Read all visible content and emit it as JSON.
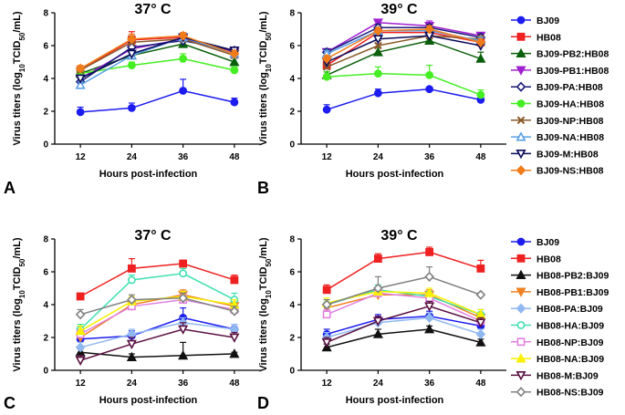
{
  "chart_data": [
    {
      "panel": "A",
      "type": "line",
      "title": "37° C",
      "xlabel": "Hours post-infection",
      "ylabel": "Virus titers (log10TCID50/mL)",
      "x": [
        12,
        24,
        36,
        48
      ],
      "xticks": [
        "12",
        "24",
        "36",
        "48"
      ],
      "ylim": [
        0,
        8
      ],
      "yticks": [
        "0",
        "2",
        "4",
        "6",
        "8"
      ],
      "series": [
        {
          "name": "BJ09",
          "color": "#1c1cf0",
          "marker": "circle",
          "values": [
            1.95,
            2.2,
            3.25,
            2.55
          ],
          "errors": [
            0.3,
            0.3,
            0.7,
            0.25
          ]
        },
        {
          "name": "HB08",
          "color": "#ef2020",
          "marker": "square",
          "values": [
            4.5,
            6.35,
            6.5,
            5.5
          ],
          "errors": [
            0.2,
            0.5,
            0.2,
            0.2
          ]
        },
        {
          "name": "BJ09-PB2:HB08",
          "color": "#0a5f0a",
          "marker": "triangle",
          "values": [
            4.3,
            5.4,
            6.1,
            5.0
          ],
          "errors": [
            0.2,
            0.3,
            0.3,
            0.3
          ]
        },
        {
          "name": "BJ09-PB1:HB08",
          "color": "#a020d0",
          "marker": "triangle-down",
          "values": [
            4.0,
            5.8,
            6.4,
            5.6
          ],
          "errors": [
            0.2,
            0.2,
            0.2,
            0.2
          ]
        },
        {
          "name": "BJ09-PA:HB08",
          "color": "#1a1a7a",
          "marker": "diamond-open",
          "values": [
            3.8,
            5.9,
            6.3,
            5.7
          ],
          "errors": [
            0.2,
            0.3,
            0.2,
            0.2
          ]
        },
        {
          "name": "BJ09-HA:HB08",
          "color": "#44ee22",
          "marker": "circle",
          "values": [
            4.3,
            4.8,
            5.2,
            4.5
          ],
          "errors": [
            0.2,
            0.2,
            0.3,
            0.2
          ]
        },
        {
          "name": "BJ09-NP:HB08",
          "color": "#8a5a2a",
          "marker": "x",
          "values": [
            4.5,
            6.2,
            6.4,
            5.4
          ],
          "errors": [
            0.2,
            0.4,
            0.3,
            0.2
          ]
        },
        {
          "name": "BJ09-NA:HB08",
          "color": "#5aa0e8",
          "marker": "triangle-open",
          "values": [
            3.6,
            5.4,
            6.5,
            5.5
          ],
          "errors": [
            0.2,
            0.3,
            0.2,
            0.2
          ]
        },
        {
          "name": "BJ09-M:HB08",
          "color": "#0a0a5a",
          "marker": "triangle-down-open",
          "values": [
            4.0,
            5.5,
            6.5,
            5.7
          ],
          "errors": [
            0.2,
            0.3,
            0.2,
            0.2
          ]
        },
        {
          "name": "BJ09-NS:HB08",
          "color": "#f07c1a",
          "marker": "diamond",
          "values": [
            4.6,
            6.4,
            6.6,
            5.5
          ],
          "errors": [
            0.2,
            0.3,
            0.2,
            0.2
          ]
        }
      ]
    },
    {
      "panel": "B",
      "type": "line",
      "title": "39° C",
      "xlabel": "Hours post-infection",
      "ylabel": "Virus titers (log10TCID50/mL)",
      "x": [
        12,
        24,
        36,
        48
      ],
      "xticks": [
        "12",
        "24",
        "36",
        "48"
      ],
      "ylim": [
        0,
        8
      ],
      "yticks": [
        "0",
        "2",
        "4",
        "6",
        "8"
      ],
      "series": [
        {
          "name": "BJ09",
          "color": "#1c1cf0",
          "marker": "circle",
          "values": [
            2.1,
            3.1,
            3.35,
            2.7
          ],
          "errors": [
            0.3,
            0.25,
            0.1,
            0.2
          ]
        },
        {
          "name": "HB08",
          "color": "#ef2020",
          "marker": "square",
          "values": [
            4.8,
            6.8,
            6.8,
            6.2
          ],
          "errors": [
            0.3,
            0.3,
            0.3,
            0.3
          ]
        },
        {
          "name": "BJ09-PB2:HB08",
          "color": "#0a5f0a",
          "marker": "triangle",
          "values": [
            4.2,
            5.6,
            6.3,
            5.2
          ],
          "errors": [
            0.2,
            0.3,
            0.3,
            0.4
          ]
        },
        {
          "name": "BJ09-PB1:HB08",
          "color": "#a020d0",
          "marker": "triangle-down",
          "values": [
            5.6,
            7.4,
            7.2,
            6.6
          ],
          "errors": [
            0.2,
            0.2,
            0.3,
            0.2
          ]
        },
        {
          "name": "BJ09-PA:HB08",
          "color": "#1a1a7a",
          "marker": "diamond-open",
          "values": [
            5.6,
            7.1,
            7.1,
            6.5
          ],
          "errors": [
            0.2,
            0.2,
            0.2,
            0.2
          ]
        },
        {
          "name": "BJ09-HA:HB08",
          "color": "#44ee22",
          "marker": "circle",
          "values": [
            4.1,
            4.3,
            4.2,
            3.0
          ],
          "errors": [
            0.3,
            0.4,
            0.6,
            0.3
          ]
        },
        {
          "name": "BJ09-NP:HB08",
          "color": "#8a5a2a",
          "marker": "x",
          "values": [
            4.7,
            6.0,
            6.6,
            6.4
          ],
          "errors": [
            0.2,
            0.3,
            0.3,
            0.2
          ]
        },
        {
          "name": "BJ09-NA:HB08",
          "color": "#5aa0e8",
          "marker": "triangle-open",
          "values": [
            5.5,
            6.9,
            6.9,
            6.3
          ],
          "errors": [
            0.2,
            0.2,
            0.2,
            0.2
          ]
        },
        {
          "name": "BJ09-M:HB08",
          "color": "#0a0a5a",
          "marker": "triangle-down-open",
          "values": [
            5.0,
            6.4,
            6.6,
            6.0
          ],
          "errors": [
            0.2,
            0.2,
            0.3,
            0.2
          ]
        },
        {
          "name": "BJ09-NS:HB08",
          "color": "#f07c1a",
          "marker": "diamond",
          "values": [
            5.2,
            6.9,
            7.0,
            6.2
          ],
          "errors": [
            0.2,
            0.2,
            0.2,
            0.2
          ]
        }
      ]
    },
    {
      "panel": "C",
      "type": "line",
      "title": "37° C",
      "xlabel": "Hours post-infection",
      "ylabel": "Virus titers (log10TCID50/mL)",
      "x": [
        12,
        24,
        36,
        48
      ],
      "xticks": [
        "12",
        "24",
        "36",
        "48"
      ],
      "ylim": [
        0,
        8
      ],
      "yticks": [
        "0",
        "2",
        "4",
        "6",
        "8"
      ],
      "series": [
        {
          "name": "BJ09",
          "color": "#1c1cf0",
          "marker": "circle",
          "values": [
            1.9,
            2.1,
            3.2,
            2.5
          ],
          "errors": [
            0.3,
            0.3,
            0.6,
            0.3
          ]
        },
        {
          "name": "HB08",
          "color": "#ef2020",
          "marker": "square",
          "values": [
            4.5,
            6.2,
            6.5,
            5.5
          ],
          "errors": [
            0.1,
            0.6,
            0.2,
            0.3
          ]
        },
        {
          "name": "HB08-PB2:BJ09",
          "color": "#111111",
          "marker": "triangle",
          "values": [
            1.1,
            0.8,
            0.9,
            1.0
          ],
          "errors": [
            0.2,
            0.2,
            0.8,
            0.1
          ]
        },
        {
          "name": "HB08-PB1:BJ09",
          "color": "#f08020",
          "marker": "triangle-down",
          "values": [
            2.0,
            4.0,
            4.6,
            3.9
          ],
          "errors": [
            0.3,
            0.3,
            0.3,
            0.3
          ]
        },
        {
          "name": "HB08-PA:BJ09",
          "color": "#90b8f0",
          "marker": "diamond",
          "values": [
            1.4,
            2.2,
            2.9,
            2.5
          ],
          "errors": [
            0.3,
            0.3,
            0.3,
            0.3
          ]
        },
        {
          "name": "HB08-HA:BJ09",
          "color": "#40e0b0",
          "marker": "circle-open",
          "values": [
            2.5,
            5.5,
            5.9,
            4.3
          ],
          "errors": [
            0.3,
            0.3,
            0.3,
            0.4
          ]
        },
        {
          "name": "HB08-NP:BJ09",
          "color": "#e080e0",
          "marker": "square-open",
          "values": [
            2.2,
            3.9,
            4.3,
            3.7
          ],
          "errors": [
            0.3,
            0.3,
            0.3,
            0.3
          ]
        },
        {
          "name": "HB08-NA:BJ09",
          "color": "#f8f000",
          "marker": "triangle",
          "values": [
            2.4,
            4.2,
            4.5,
            4.0
          ],
          "errors": [
            0.3,
            0.3,
            0.3,
            0.3
          ]
        },
        {
          "name": "HB08-M:BJ09",
          "color": "#5a1040",
          "marker": "triangle-down-open",
          "values": [
            0.6,
            1.6,
            2.5,
            2.0
          ],
          "errors": [
            0.3,
            0.4,
            0.4,
            0.3
          ]
        },
        {
          "name": "HB08-NS:BJ09",
          "color": "#808080",
          "marker": "diamond-open",
          "values": [
            3.4,
            4.3,
            4.4,
            3.6
          ],
          "errors": [
            0.3,
            0.3,
            0.3,
            0.3
          ]
        }
      ]
    },
    {
      "panel": "D",
      "type": "line",
      "title": "39° C",
      "xlabel": "Hours post-infection",
      "ylabel": "Virus titers (log10TCID50/mL)",
      "x": [
        12,
        24,
        36,
        48
      ],
      "xticks": [
        "12",
        "24",
        "36",
        "48"
      ],
      "ylim": [
        0,
        8
      ],
      "yticks": [
        "0",
        "2",
        "4",
        "6",
        "8"
      ],
      "series": [
        {
          "name": "BJ09",
          "color": "#1c1cf0",
          "marker": "circle",
          "values": [
            2.2,
            3.1,
            3.3,
            2.7
          ],
          "errors": [
            0.3,
            0.3,
            0.3,
            0.2
          ]
        },
        {
          "name": "HB08",
          "color": "#ef2020",
          "marker": "square",
          "values": [
            4.9,
            6.8,
            7.2,
            6.2
          ],
          "errors": [
            0.3,
            0.3,
            0.3,
            0.5
          ]
        },
        {
          "name": "HB08-PB2:BJ09",
          "color": "#111111",
          "marker": "triangle",
          "values": [
            1.4,
            2.2,
            2.5,
            1.7
          ],
          "errors": [
            0.2,
            0.3,
            0.2,
            0.2
          ]
        },
        {
          "name": "HB08-PB1:BJ09",
          "color": "#f08020",
          "marker": "triangle-down",
          "values": [
            3.8,
            4.6,
            4.6,
            3.2
          ],
          "errors": [
            0.3,
            0.4,
            0.3,
            0.3
          ]
        },
        {
          "name": "HB08-PA:BJ09",
          "color": "#90b8f0",
          "marker": "diamond",
          "values": [
            2.0,
            2.9,
            3.2,
            2.2
          ],
          "errors": [
            0.3,
            0.3,
            0.3,
            0.3
          ]
        },
        {
          "name": "HB08-HA:BJ09",
          "color": "#40e0b0",
          "marker": "circle-open",
          "values": [
            4.0,
            4.9,
            4.5,
            3.4
          ],
          "errors": [
            0.3,
            0.3,
            0.3,
            0.3
          ]
        },
        {
          "name": "HB08-NP:BJ09",
          "color": "#e080e0",
          "marker": "square-open",
          "values": [
            3.4,
            4.7,
            4.4,
            3.0
          ],
          "errors": [
            0.3,
            0.3,
            0.3,
            0.3
          ]
        },
        {
          "name": "HB08-NA:BJ09",
          "color": "#f8f000",
          "marker": "triangle",
          "values": [
            4.1,
            4.8,
            4.7,
            3.4
          ],
          "errors": [
            0.3,
            0.3,
            0.3,
            0.3
          ]
        },
        {
          "name": "HB08-M:BJ09",
          "color": "#5a1040",
          "marker": "triangle-down-open",
          "values": [
            1.7,
            3.0,
            3.9,
            2.9
          ],
          "errors": [
            0.3,
            0.3,
            0.3,
            0.3
          ]
        },
        {
          "name": "HB08-NS:BJ09",
          "color": "#808080",
          "marker": "diamond-open",
          "values": [
            4.0,
            5.0,
            5.7,
            4.6
          ],
          "errors": [
            0.3,
            0.7,
            0.6,
            0.1
          ]
        }
      ]
    }
  ]
}
